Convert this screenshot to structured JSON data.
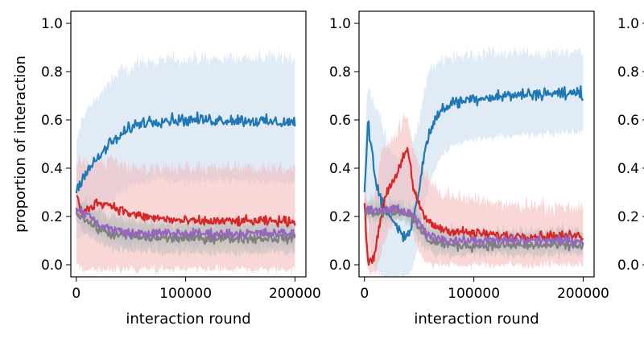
{
  "colors": {
    "blue": "#1f77b4",
    "red": "#d62728",
    "purple": "#9467bd",
    "gray": "#7f7f7f",
    "blue_band": "#c6dbef",
    "red_band": "#f4b6b6",
    "gray_band": "#bdbdbd"
  },
  "chart_data": [
    {
      "type": "line",
      "xlabel": "interaction round",
      "ylabel": "proportion of interaction",
      "xlim": [
        -5000,
        210000
      ],
      "ylim": [
        -0.05,
        1.05
      ],
      "xticks": [
        0,
        100000,
        200000
      ],
      "xtick_labels": [
        "0",
        "100000",
        "200000"
      ],
      "yticks": [
        0.0,
        0.2,
        0.4,
        0.6,
        0.8,
        1.0
      ],
      "ytick_labels": [
        "0.0",
        "0.2",
        "0.4",
        "0.6",
        "0.8",
        "1.0"
      ],
      "grid": false,
      "series": [
        {
          "color": "blue",
          "band_color": "blue_band",
          "x": [
            0,
            5000,
            10000,
            20000,
            30000,
            40000,
            50000,
            60000,
            80000,
            100000,
            120000,
            150000,
            180000,
            200000
          ],
          "values": [
            0.3,
            0.36,
            0.39,
            0.44,
            0.5,
            0.53,
            0.57,
            0.59,
            0.6,
            0.6,
            0.6,
            0.6,
            0.59,
            0.59
          ],
          "band_low": [
            0.1,
            0.12,
            0.15,
            0.2,
            0.25,
            0.3,
            0.33,
            0.34,
            0.35,
            0.35,
            0.35,
            0.35,
            0.34,
            0.34
          ],
          "band_high": [
            0.5,
            0.6,
            0.65,
            0.7,
            0.75,
            0.8,
            0.82,
            0.84,
            0.85,
            0.85,
            0.85,
            0.86,
            0.86,
            0.86
          ]
        },
        {
          "color": "red",
          "band_color": "red_band",
          "x": [
            0,
            5000,
            10000,
            20000,
            30000,
            40000,
            50000,
            60000,
            80000,
            100000,
            120000,
            150000,
            180000,
            200000
          ],
          "values": [
            0.3,
            0.2,
            0.23,
            0.26,
            0.25,
            0.23,
            0.21,
            0.2,
            0.19,
            0.18,
            0.18,
            0.18,
            0.18,
            0.18
          ],
          "band_low": [
            0.0,
            -0.02,
            -0.02,
            -0.02,
            -0.02,
            -0.02,
            -0.02,
            -0.02,
            -0.02,
            -0.02,
            -0.02,
            -0.02,
            -0.02,
            -0.02
          ],
          "band_high": [
            0.45,
            0.42,
            0.42,
            0.43,
            0.43,
            0.42,
            0.41,
            0.4,
            0.4,
            0.4,
            0.4,
            0.4,
            0.4,
            0.4
          ]
        },
        {
          "color": "gray",
          "band_color": "gray_band",
          "x": [
            0,
            5000,
            10000,
            20000,
            30000,
            40000,
            50000,
            60000,
            80000,
            100000,
            120000,
            150000,
            180000,
            200000
          ],
          "values": [
            0.22,
            0.2,
            0.18,
            0.15,
            0.13,
            0.12,
            0.12,
            0.11,
            0.11,
            0.11,
            0.11,
            0.11,
            0.11,
            0.11
          ],
          "band_low": [
            0.18,
            0.15,
            0.12,
            0.09,
            0.07,
            0.06,
            0.06,
            0.05,
            0.05,
            0.05,
            0.05,
            0.05,
            0.05,
            0.05
          ],
          "band_high": [
            0.26,
            0.26,
            0.24,
            0.22,
            0.2,
            0.19,
            0.18,
            0.17,
            0.17,
            0.17,
            0.17,
            0.17,
            0.17,
            0.17
          ]
        },
        {
          "color": "purple",
          "band_color": "gray_band",
          "x": [
            0,
            5000,
            10000,
            20000,
            30000,
            40000,
            50000,
            60000,
            80000,
            100000,
            120000,
            150000,
            180000,
            200000
          ],
          "values": [
            0.23,
            0.22,
            0.21,
            0.17,
            0.15,
            0.14,
            0.13,
            0.13,
            0.13,
            0.13,
            0.13,
            0.13,
            0.13,
            0.13
          ],
          "band_low": [
            0.2,
            0.18,
            0.16,
            0.12,
            0.1,
            0.09,
            0.08,
            0.08,
            0.08,
            0.08,
            0.08,
            0.08,
            0.08,
            0.08
          ],
          "band_high": [
            0.26,
            0.26,
            0.25,
            0.22,
            0.2,
            0.19,
            0.18,
            0.18,
            0.18,
            0.18,
            0.18,
            0.18,
            0.18,
            0.18
          ]
        }
      ]
    },
    {
      "type": "line",
      "xlabel": "interaction round",
      "ylabel": "",
      "xlim": [
        -5000,
        210000
      ],
      "ylim": [
        -0.05,
        1.05
      ],
      "xticks": [
        0,
        100000,
        200000
      ],
      "xtick_labels": [
        "0",
        "100000",
        "200000"
      ],
      "yticks": [
        0.0,
        0.2,
        0.4,
        0.6,
        0.8,
        1.0
      ],
      "ytick_labels": [
        "0.0",
        "0.2",
        "0.4",
        "0.6",
        "0.8",
        "1.0"
      ],
      "grid": false,
      "series": [
        {
          "color": "blue",
          "band_color": "blue_band",
          "x": [
            0,
            3000,
            6000,
            10000,
            15000,
            20000,
            30000,
            35000,
            40000,
            45000,
            50000,
            55000,
            60000,
            70000,
            80000,
            100000,
            130000,
            160000,
            200000
          ],
          "values": [
            0.3,
            0.6,
            0.5,
            0.35,
            0.27,
            0.22,
            0.16,
            0.12,
            0.12,
            0.2,
            0.32,
            0.46,
            0.56,
            0.64,
            0.67,
            0.69,
            0.7,
            0.71,
            0.71
          ],
          "band_low": [
            0.1,
            0.2,
            0.05,
            -0.02,
            -0.05,
            -0.05,
            -0.05,
            -0.05,
            -0.05,
            0.0,
            0.1,
            0.25,
            0.35,
            0.45,
            0.5,
            0.52,
            0.53,
            0.54,
            0.55
          ],
          "band_high": [
            0.5,
            0.75,
            0.7,
            0.65,
            0.6,
            0.5,
            0.45,
            0.45,
            0.45,
            0.5,
            0.6,
            0.72,
            0.82,
            0.85,
            0.86,
            0.87,
            0.88,
            0.88,
            0.88
          ]
        },
        {
          "color": "red",
          "band_color": "red_band",
          "x": [
            0,
            3000,
            6000,
            10000,
            15000,
            20000,
            30000,
            35000,
            40000,
            45000,
            50000,
            55000,
            60000,
            70000,
            80000,
            100000,
            130000,
            160000,
            200000
          ],
          "values": [
            0.25,
            0.02,
            0.02,
            0.05,
            0.2,
            0.3,
            0.38,
            0.45,
            0.47,
            0.3,
            0.25,
            0.2,
            0.17,
            0.15,
            0.14,
            0.13,
            0.12,
            0.12,
            0.12
          ],
          "band_low": [
            0.1,
            -0.03,
            -0.03,
            -0.03,
            0.05,
            0.12,
            0.2,
            0.25,
            0.25,
            0.12,
            0.06,
            0.02,
            0.0,
            0.0,
            0.0,
            0.0,
            0.0,
            0.0,
            0.0
          ],
          "band_high": [
            0.4,
            0.15,
            0.2,
            0.3,
            0.45,
            0.5,
            0.55,
            0.6,
            0.6,
            0.48,
            0.42,
            0.38,
            0.35,
            0.3,
            0.28,
            0.27,
            0.25,
            0.24,
            0.24
          ]
        },
        {
          "color": "gray",
          "band_color": "gray_band",
          "x": [
            0,
            3000,
            6000,
            10000,
            15000,
            20000,
            30000,
            35000,
            40000,
            45000,
            50000,
            55000,
            60000,
            70000,
            80000,
            100000,
            130000,
            160000,
            200000
          ],
          "values": [
            0.22,
            0.22,
            0.22,
            0.22,
            0.22,
            0.22,
            0.22,
            0.22,
            0.21,
            0.18,
            0.15,
            0.12,
            0.1,
            0.09,
            0.08,
            0.08,
            0.08,
            0.08,
            0.08
          ],
          "band_low": [
            0.18,
            0.18,
            0.18,
            0.18,
            0.18,
            0.18,
            0.18,
            0.18,
            0.17,
            0.14,
            0.1,
            0.07,
            0.05,
            0.04,
            0.04,
            0.04,
            0.04,
            0.04,
            0.04
          ],
          "band_high": [
            0.26,
            0.26,
            0.26,
            0.26,
            0.26,
            0.26,
            0.26,
            0.26,
            0.25,
            0.23,
            0.2,
            0.17,
            0.15,
            0.14,
            0.13,
            0.13,
            0.13,
            0.13,
            0.13
          ]
        },
        {
          "color": "purple",
          "band_color": "gray_band",
          "x": [
            0,
            3000,
            6000,
            10000,
            15000,
            20000,
            30000,
            35000,
            40000,
            45000,
            50000,
            55000,
            60000,
            70000,
            80000,
            100000,
            130000,
            160000,
            200000
          ],
          "values": [
            0.22,
            0.23,
            0.23,
            0.22,
            0.22,
            0.23,
            0.23,
            0.22,
            0.21,
            0.2,
            0.17,
            0.14,
            0.12,
            0.11,
            0.1,
            0.1,
            0.1,
            0.1,
            0.1
          ],
          "band_low": [
            0.2,
            0.2,
            0.2,
            0.19,
            0.19,
            0.2,
            0.2,
            0.19,
            0.18,
            0.16,
            0.13,
            0.1,
            0.08,
            0.07,
            0.06,
            0.06,
            0.06,
            0.06,
            0.06
          ],
          "band_high": [
            0.25,
            0.26,
            0.26,
            0.25,
            0.25,
            0.26,
            0.26,
            0.25,
            0.24,
            0.24,
            0.21,
            0.18,
            0.16,
            0.15,
            0.14,
            0.14,
            0.14,
            0.14,
            0.14
          ]
        }
      ]
    },
    {
      "type": "line",
      "xlabel": "",
      "ylabel": "",
      "ylim": [
        -0.05,
        1.05
      ],
      "yticks": [
        0.0,
        0.2,
        0.4,
        0.6,
        0.8,
        1.0
      ],
      "ytick_labels": [
        "0.0",
        "0.2",
        "0.4",
        "0.6",
        "0.8",
        "1.0"
      ],
      "partial": true,
      "series": []
    }
  ]
}
